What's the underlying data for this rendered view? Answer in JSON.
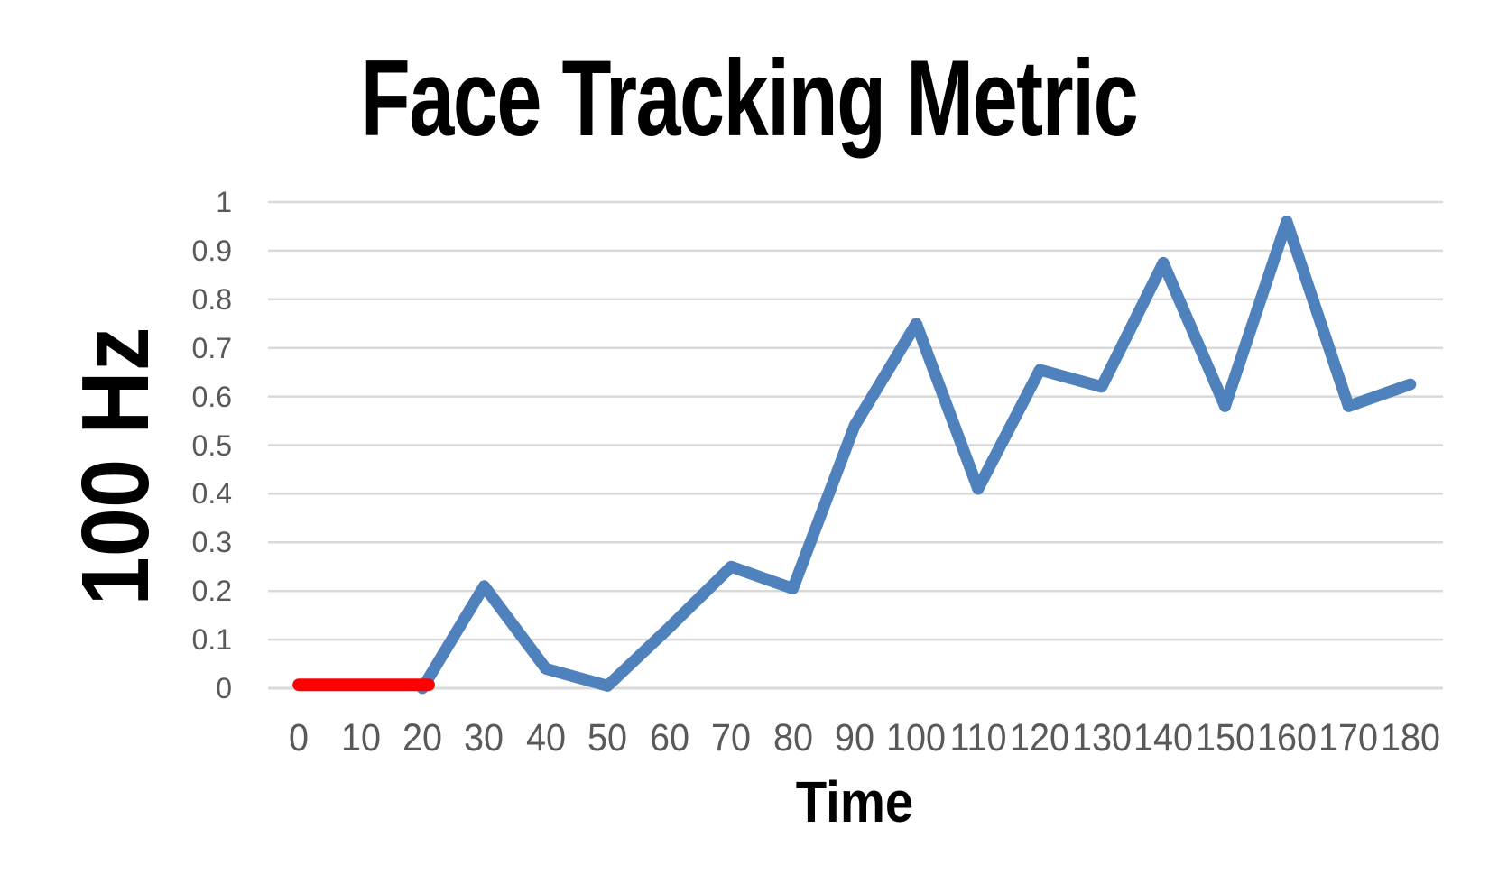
{
  "chart": {
    "title": "Face Tracking Metric",
    "x_axis_title": "Time",
    "y_axis_title": "100 Hz"
  },
  "chart_data": {
    "type": "line",
    "title": "Face Tracking Metric",
    "xlabel": "Time",
    "ylabel": "100 Hz",
    "ylim": [
      0,
      1
    ],
    "x_tick_values": [
      0,
      10,
      20,
      30,
      40,
      50,
      60,
      70,
      80,
      90,
      100,
      110,
      120,
      130,
      140,
      150,
      160,
      170,
      180
    ],
    "y_tick_labels": [
      "1",
      "0.9",
      "0.8",
      "0.7",
      "0.6",
      "0.5",
      "0.4",
      "0.3",
      "0.2",
      "0.1",
      "0"
    ],
    "grid": "horizontal",
    "legend": "none",
    "label_color": "#595959",
    "grid_color": "#D9D9D9",
    "series": [
      {
        "name": "face-tracking-metric",
        "color": "#4F81BD",
        "stroke_width": 13,
        "points": [
          [
            20,
            0
          ],
          [
            30,
            0.21
          ],
          [
            40,
            0.04
          ],
          [
            50,
            0.005
          ],
          [
            60,
            0.125
          ],
          [
            70,
            0.25
          ],
          [
            80,
            0.205
          ],
          [
            90,
            0.54
          ],
          [
            100,
            0.75
          ],
          [
            110,
            0.41
          ],
          [
            120,
            0.655
          ],
          [
            130,
            0.62
          ],
          [
            140,
            0.875
          ],
          [
            150,
            0.58
          ],
          [
            160,
            0.96
          ],
          [
            170,
            0.58
          ],
          [
            180,
            0.625
          ]
        ]
      },
      {
        "name": "zero-flat-segment",
        "color": "#FF0000",
        "stroke_width": 14,
        "points": [
          [
            0,
            0.007
          ],
          [
            21,
            0.007
          ]
        ]
      }
    ]
  }
}
